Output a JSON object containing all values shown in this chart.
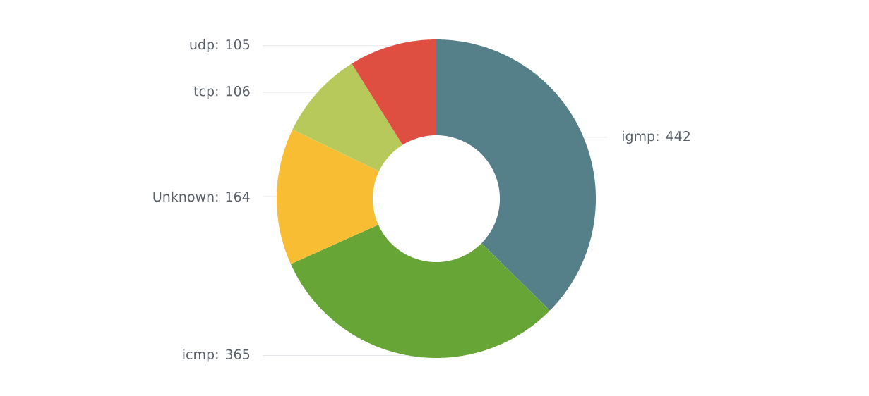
{
  "chart_data": {
    "type": "donut",
    "categories": [
      "igmp",
      "icmp",
      "Unknown",
      "tcp",
      "udp"
    ],
    "values": [
      442,
      365,
      164,
      106,
      105
    ],
    "colors": [
      "#55808a",
      "#67a636",
      "#f8bd33",
      "#b7c95a",
      "#de4f41"
    ],
    "value_labels": [
      ": 442",
      ": 365",
      ": 164",
      ": 106",
      ": 105"
    ]
  }
}
